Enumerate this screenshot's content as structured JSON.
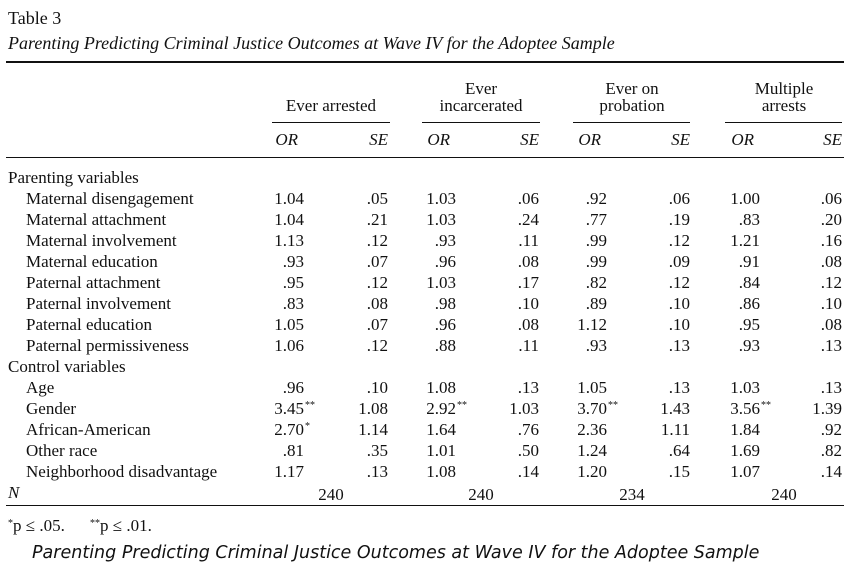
{
  "title": "Table 3",
  "subtitle": "Parenting Predicting Criminal Justice Outcomes at Wave IV for the Adoptee Sample",
  "groups": [
    {
      "lines": [
        "Ever arrested"
      ]
    },
    {
      "lines": [
        "Ever",
        "incarcerated"
      ]
    },
    {
      "lines": [
        "Ever on",
        "probation"
      ]
    },
    {
      "lines": [
        "Multiple",
        "arrests"
      ]
    }
  ],
  "column_heads": [
    "OR",
    "SE",
    "OR",
    "SE",
    "OR",
    "SE",
    "OR",
    "SE"
  ],
  "sections": [
    {
      "label": "Parenting variables",
      "rows": [
        {
          "label": "Maternal disengagement",
          "cells": [
            "1.04",
            ".05",
            "1.03",
            ".06",
            ".92",
            ".06",
            "1.00",
            ".06"
          ]
        },
        {
          "label": "Maternal attachment",
          "cells": [
            "1.04",
            ".21",
            "1.03",
            ".24",
            ".77",
            ".19",
            ".83",
            ".20"
          ]
        },
        {
          "label": "Maternal involvement",
          "cells": [
            "1.13",
            ".12",
            ".93",
            ".11",
            ".99",
            ".12",
            "1.21",
            ".16"
          ]
        },
        {
          "label": "Maternal education",
          "cells": [
            ".93",
            ".07",
            ".96",
            ".08",
            ".99",
            ".09",
            ".91",
            ".08"
          ]
        },
        {
          "label": "Paternal attachment",
          "cells": [
            ".95",
            ".12",
            "1.03",
            ".17",
            ".82",
            ".12",
            ".84",
            ".12"
          ]
        },
        {
          "label": "Paternal involvement",
          "cells": [
            ".83",
            ".08",
            ".98",
            ".10",
            ".89",
            ".10",
            ".86",
            ".10"
          ]
        },
        {
          "label": "Paternal education",
          "cells": [
            "1.05",
            ".07",
            ".96",
            ".08",
            "1.12",
            ".10",
            ".95",
            ".08"
          ]
        },
        {
          "label": "Paternal permissiveness",
          "cells": [
            "1.06",
            ".12",
            ".88",
            ".11",
            ".93",
            ".13",
            ".93",
            ".13"
          ]
        }
      ]
    },
    {
      "label": "Control variables",
      "rows": [
        {
          "label": "Age",
          "cells": [
            ".96",
            ".10",
            "1.08",
            ".13",
            "1.05",
            ".13",
            "1.03",
            ".13"
          ]
        },
        {
          "label": "Gender",
          "cells": [
            {
              "text": "3.45",
              "mark": "**"
            },
            "1.08",
            {
              "text": "2.92",
              "mark": "**"
            },
            "1.03",
            {
              "text": "3.70",
              "mark": "**"
            },
            "1.43",
            {
              "text": "3.56",
              "mark": "**"
            },
            "1.39"
          ]
        },
        {
          "label": "African-American",
          "cells": [
            {
              "text": "2.70",
              "mark": "*"
            },
            "1.14",
            "1.64",
            ".76",
            "2.36",
            "1.11",
            "1.84",
            ".92"
          ]
        },
        {
          "label": "Other race",
          "cells": [
            ".81",
            ".35",
            "1.01",
            ".50",
            "1.24",
            ".64",
            "1.69",
            ".82"
          ]
        },
        {
          "label": "Neighborhood disadvantage",
          "cells": [
            "1.17",
            ".13",
            "1.08",
            ".14",
            "1.20",
            ".15",
            "1.07",
            ".14"
          ]
        }
      ]
    }
  ],
  "n_row": {
    "label": "N",
    "values": [
      "240",
      "240",
      "234",
      "240"
    ]
  },
  "footnotes": [
    {
      "mark": "*",
      "text": "p ≤ .05."
    },
    {
      "mark": "**",
      "text": "p ≤ .01."
    }
  ],
  "caption": "Parenting Predicting Criminal Justice Outcomes at Wave IV for the Adoptee Sample"
}
